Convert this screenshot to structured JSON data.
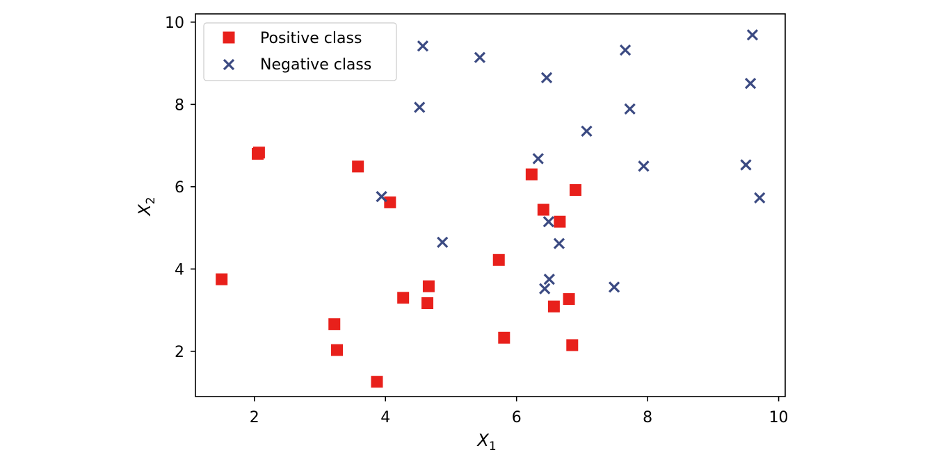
{
  "chart_data": {
    "type": "scatter",
    "title": "",
    "xlabel": "X",
    "xlabel_sub": "1",
    "ylabel": "X",
    "ylabel_sub": "2",
    "xlim": [
      1.1,
      10.1
    ],
    "ylim": [
      0.9,
      10.2
    ],
    "xticks": [
      2,
      4,
      6,
      8,
      10
    ],
    "yticks": [
      2,
      4,
      6,
      8,
      10
    ],
    "grid": false,
    "legend_position": "top-left",
    "series": [
      {
        "name": "Positive class",
        "marker": "square",
        "color": "#e8201b",
        "points": [
          [
            1.5,
            3.75
          ],
          [
            2.05,
            6.8
          ],
          [
            2.07,
            6.83
          ],
          [
            3.22,
            2.66
          ],
          [
            3.26,
            2.03
          ],
          [
            3.58,
            6.49
          ],
          [
            3.87,
            1.26
          ],
          [
            4.07,
            5.62
          ],
          [
            4.27,
            3.3
          ],
          [
            4.64,
            3.17
          ],
          [
            4.66,
            3.58
          ],
          [
            5.73,
            4.22
          ],
          [
            5.81,
            2.33
          ],
          [
            6.23,
            6.3
          ],
          [
            6.41,
            5.44
          ],
          [
            6.57,
            3.09
          ],
          [
            6.66,
            5.15
          ],
          [
            6.8,
            3.27
          ],
          [
            6.85,
            2.15
          ],
          [
            6.9,
            5.92
          ]
        ]
      },
      {
        "name": "Negative class",
        "marker": "x",
        "color": "#3b4a82",
        "points": [
          [
            3.94,
            5.76
          ],
          [
            4.52,
            7.93
          ],
          [
            4.57,
            9.42
          ],
          [
            4.87,
            4.65
          ],
          [
            5.44,
            9.14
          ],
          [
            6.33,
            6.68
          ],
          [
            6.43,
            3.52
          ],
          [
            6.46,
            8.65
          ],
          [
            6.49,
            5.15
          ],
          [
            6.5,
            3.75
          ],
          [
            6.65,
            4.62
          ],
          [
            7.07,
            7.35
          ],
          [
            7.49,
            3.56
          ],
          [
            7.66,
            9.32
          ],
          [
            7.73,
            7.89
          ],
          [
            7.94,
            6.5
          ],
          [
            9.5,
            6.53
          ],
          [
            9.57,
            8.51
          ],
          [
            9.6,
            9.69
          ],
          [
            9.71,
            5.73
          ]
        ]
      }
    ]
  }
}
